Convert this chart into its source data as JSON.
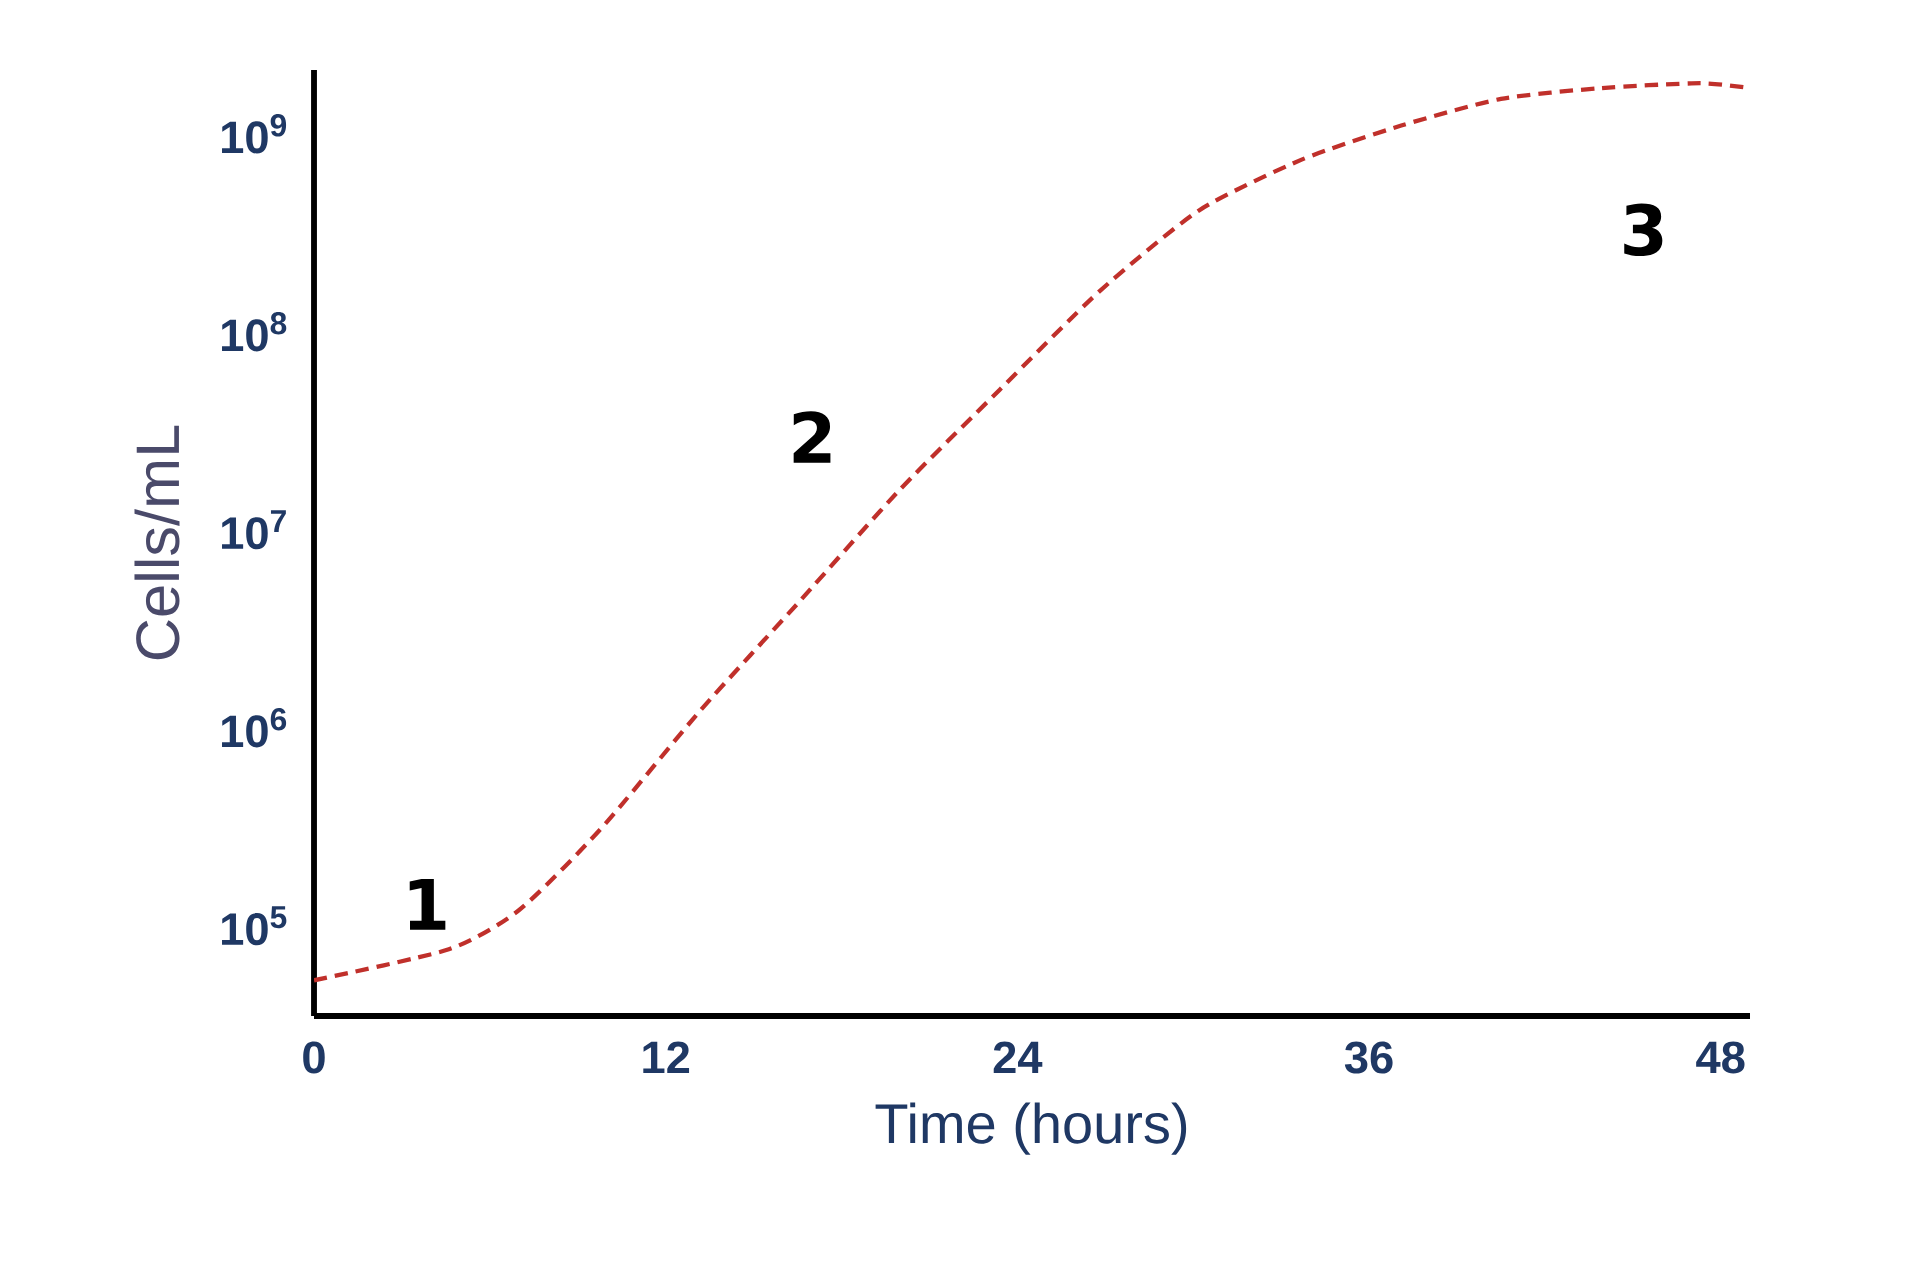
{
  "chart_data": {
    "type": "line",
    "xlabel": "Time (hours)",
    "ylabel": "Cells/mL",
    "log": "y",
    "xlim": [
      0,
      49
    ],
    "xticks": [
      0,
      12,
      24,
      36,
      48
    ],
    "ylim": [
      35000,
      2100000000
    ],
    "yticks": [
      {
        "value": 100000,
        "label": "10$^{5}$"
      },
      {
        "value": 1000000,
        "label": "10$^{6}$"
      },
      {
        "value": 10000000,
        "label": "10$^{7}$"
      },
      {
        "value": 100000000,
        "label": "10$^{8}$"
      },
      {
        "value": 1000000000,
        "label": "10$^{9}$"
      }
    ],
    "x": [
      0,
      4.6,
      7.0,
      9.8,
      13.2,
      16.6,
      20.0,
      23.4,
      26.8,
      30.2,
      33.7,
      37.1,
      40.5,
      43.9,
      47.3,
      49
    ],
    "series": [
      {
        "color": "#c0302b",
        "values": [
          53000,
          76000,
          120000,
          310000,
          1230000,
          4400000,
          16000000,
          51000000,
          160000000,
          410000000,
          740000000,
          1100000000,
          1500000000,
          1700000000,
          1800000000,
          1700000000
        ]
      }
    ],
    "line_style": "dashed",
    "marker": "none",
    "grid": false,
    "annotations": [
      "1",
      "2",
      "3"
    ]
  }
}
